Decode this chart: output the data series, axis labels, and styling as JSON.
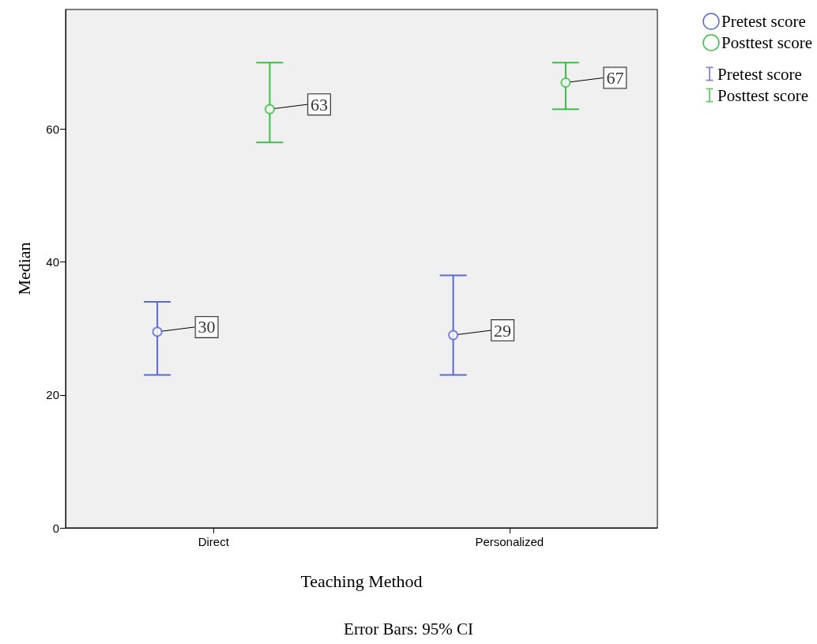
{
  "chart_data": {
    "type": "scatter",
    "xlabel": "Teaching Method",
    "ylabel": "Median",
    "categories": [
      "Direct",
      "Personalized"
    ],
    "series": [
      {
        "name": "Pretest score",
        "color": "#5a6ad2",
        "values": [
          29.5,
          29
        ],
        "value_labels": [
          "30",
          "29"
        ],
        "errors": [
          [
            23,
            34
          ],
          [
            23,
            38
          ]
        ]
      },
      {
        "name": "Posttest score",
        "color": "#3cbf48",
        "values": [
          63,
          67
        ],
        "value_labels": [
          "63",
          "67"
        ],
        "errors": [
          [
            58,
            70
          ],
          [
            63,
            70
          ]
        ]
      }
    ],
    "ylim": [
      0,
      78
    ],
    "yticks": [
      0,
      20,
      40,
      60
    ],
    "grid": false,
    "legend": "top right",
    "marker": "circle",
    "annotations": [
      "Error Bars: 95% CI"
    ]
  }
}
